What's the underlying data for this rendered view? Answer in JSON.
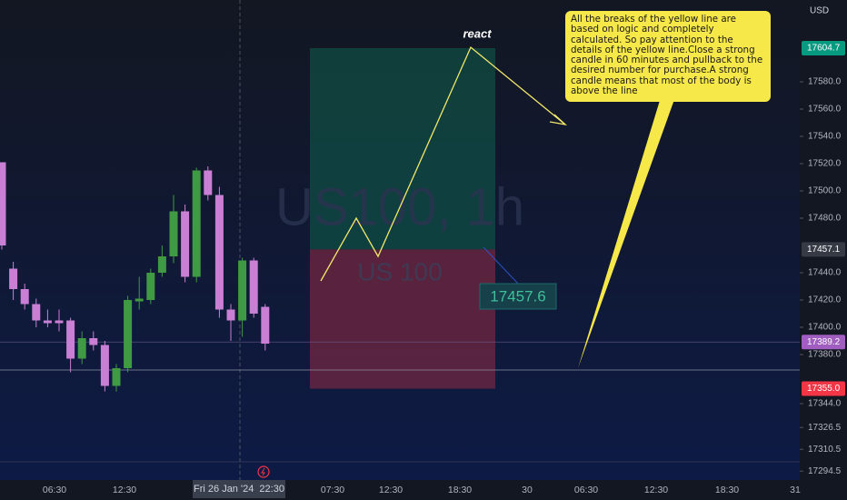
{
  "chart_data": {
    "type": "candlestick",
    "watermark": "US100, 1h",
    "subwatermark": "US 100",
    "currency": "USD",
    "open": [
      17521,
      17443,
      17428,
      17417,
      17405,
      17405,
      17405,
      17377,
      17392,
      17387,
      17357,
      17370,
      17419,
      17420,
      17440,
      17452,
      17485,
      17437,
      17515,
      17497,
      17413,
      17405,
      17449,
      17415
    ],
    "high": [
      17521,
      17448,
      17432,
      17421,
      17413,
      17413,
      17407,
      17397,
      17397,
      17390,
      17373,
      17423,
      17437,
      17443,
      17460,
      17497,
      17490,
      17517,
      17518,
      17503,
      17417,
      17451,
      17451,
      17417
    ],
    "low": [
      17457,
      17420,
      17413,
      17400,
      17400,
      17397,
      17367,
      17373,
      17383,
      17353,
      17353,
      17367,
      17413,
      17417,
      17437,
      17447,
      17433,
      17433,
      17493,
      17407,
      17390,
      17393,
      17407,
      17383
    ],
    "close": [
      17460,
      17428,
      17417,
      17405,
      17403,
      17403,
      17377,
      17392,
      17387,
      17357,
      17370,
      17420,
      17421,
      17440,
      17452,
      17485,
      17437,
      17515,
      17497,
      17413,
      17405,
      17449,
      17410,
      17388
    ],
    "up_color": "#3f9a43",
    "down_color": "#c97fd4",
    "ylim": [
      17290,
      17640
    ],
    "yticks": [
      {
        "value": 17580,
        "label": "17580.0"
      },
      {
        "value": 17560,
        "label": "17560.0"
      },
      {
        "value": 17540,
        "label": "17540.0"
      },
      {
        "value": 17520,
        "label": "17520.0"
      },
      {
        "value": 17500,
        "label": "17500.0"
      },
      {
        "value": 17480,
        "label": "17480.0"
      },
      {
        "value": 17440,
        "label": "17440.0"
      },
      {
        "value": 17420,
        "label": "17420.0"
      },
      {
        "value": 17400,
        "label": "17400.0"
      },
      {
        "value": 17380,
        "label": "17380.0"
      },
      {
        "value": 17344,
        "label": "17344.0"
      },
      17326.5,
      17310.5,
      17294.5
    ],
    "x_labels": [
      "06:30",
      "12:30",
      "07:30",
      "12:30",
      "18:30",
      "30",
      "06:30",
      "12:30",
      "18:30",
      "31"
    ],
    "crosshair_label": "Fri 26 Jan '24  22:30",
    "price_labels": [
      {
        "value": 17604.7,
        "color": "#089981"
      },
      {
        "value": 17457.1,
        "color": "#363a45"
      },
      {
        "value": 17389.2,
        "color": "#a05fc0"
      },
      {
        "value": 17355,
        "label": "17355.0",
        "color": "#f23645"
      }
    ],
    "annotations": {
      "react": "react",
      "position_label": "17457.6",
      "callout": "All the breaks of the yellow line are based on logic and completely calculated. So pay attention to the details of the yellow line.Close a strong candle in 60 minutes and pullback to the desired number for purchase.A strong candle means that most of the body is above the line"
    }
  }
}
